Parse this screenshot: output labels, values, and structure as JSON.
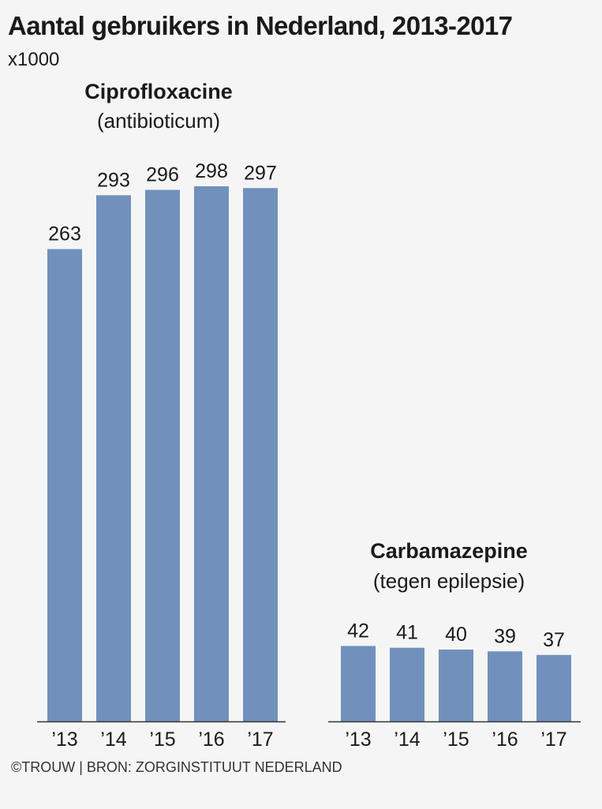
{
  "title": "Aantal gebruikers in Nederland, 2013-2017",
  "unit": "x1000",
  "source": "©TROUW | BRON: ZORGINSTITUUT NEDERLAND",
  "bar_color": "#7191bc",
  "chart_data": [
    {
      "type": "bar",
      "title": "Ciprofloxacine",
      "subtitle": "(antibioticum)",
      "categories": [
        "’13",
        "’14",
        "’15",
        "’16",
        "’17"
      ],
      "values": [
        263,
        293,
        296,
        298,
        297
      ],
      "ylim": [
        0,
        298
      ]
    },
    {
      "type": "bar",
      "title": "Carbamazepine",
      "subtitle": "(tegen epilepsie)",
      "categories": [
        "’13",
        "’14",
        "’15",
        "’16",
        "’17"
      ],
      "values": [
        42,
        41,
        40,
        39,
        37
      ],
      "ylim": [
        0,
        298
      ]
    }
  ]
}
